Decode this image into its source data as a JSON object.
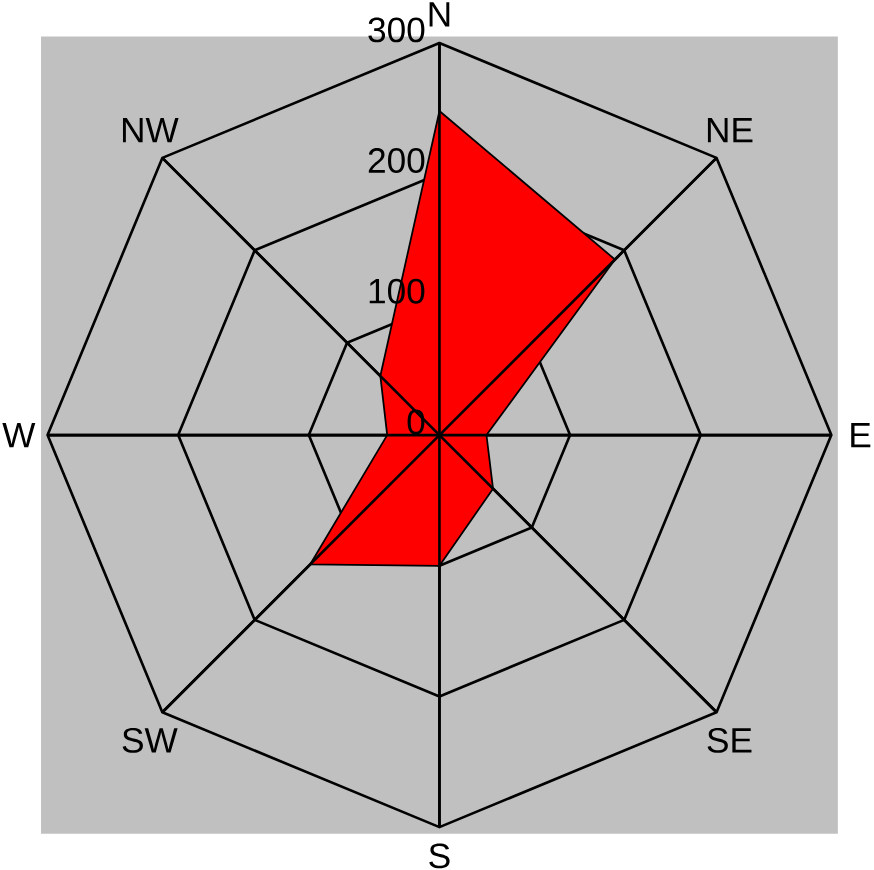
{
  "chart_data": {
    "type": "radar",
    "categories": [
      "N",
      "NE",
      "E",
      "SE",
      "S",
      "SW",
      "W",
      "NW"
    ],
    "series": [
      {
        "color": "#ff0000",
        "values": [
          248,
          190,
          36,
          58,
          100,
          140,
          40,
          64
        ]
      }
    ],
    "ylim": [
      0,
      300
    ],
    "yticks": [
      0,
      100,
      200,
      300
    ],
    "grid": true
  }
}
